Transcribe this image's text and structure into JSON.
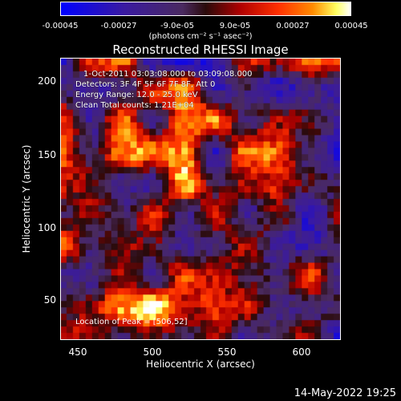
{
  "colorbar": {
    "ticks": [
      "-0.00045",
      "-0.00027",
      "-9.0e-05",
      "9.0e-05",
      "0.00027",
      "0.00045"
    ],
    "units": "(photons cm⁻² s⁻¹ asec⁻²)",
    "colors": [
      "#0000ff",
      "#3a1aa0",
      "#4a2a60",
      "#2a0a0a",
      "#b00000",
      "#ff3000",
      "#ff8c00",
      "#ffff60",
      "#ffffff"
    ]
  },
  "title": "Reconstructed RHESSI Image",
  "info": {
    "time": "1-Oct-2011 03:03:08.000 to 03:09:08.000",
    "detectors": "Detectors: 3F 4F 5F 6F 7F 8F, Att 0",
    "energy": "Energy Range: 12.0 - 25.0 keV",
    "clean": "Clean    Total counts: 1.21E+04"
  },
  "peak": "Location of Peak = [506,52]",
  "xlabel": "Heliocentric X (arcsec)",
  "ylabel": "Heliocentric Y (arcsec)",
  "timestamp": "14-May-2022 19:25",
  "chart_data": {
    "type": "heatmap",
    "title": "Reconstructed RHESSI Image",
    "xlabel": "Heliocentric X (arcsec)",
    "ylabel": "Heliocentric Y (arcsec)",
    "x_ticks": [
      "450",
      "500",
      "550",
      "600"
    ],
    "y_ticks": [
      "50",
      "100",
      "150",
      "200"
    ],
    "xlim": [
      436,
      628
    ],
    "ylim": [
      22,
      214
    ],
    "colorbar_range": [
      -0.00045,
      0.00045
    ],
    "peak_location": [
      506,
      52
    ]
  }
}
